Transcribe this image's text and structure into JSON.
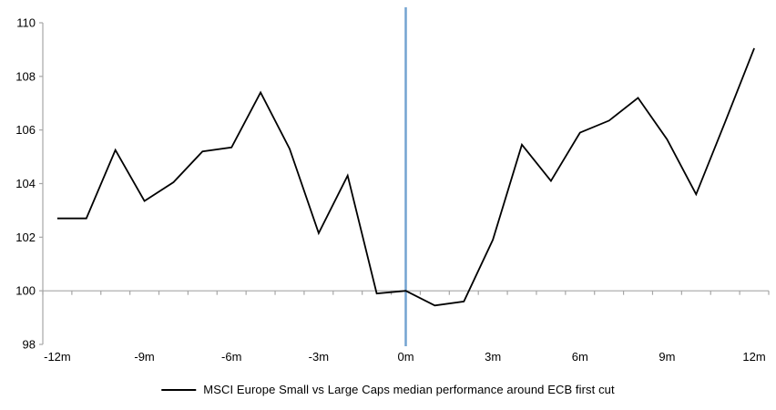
{
  "chart_data": {
    "type": "line",
    "title": "",
    "xlabel": "",
    "ylabel": "",
    "x_months": [
      -12,
      -11,
      -10,
      -9,
      -8,
      -7,
      -6,
      -5,
      -4,
      -3,
      -2,
      -1,
      0,
      1,
      2,
      3,
      4,
      5,
      6,
      7,
      8,
      9,
      10,
      11,
      12
    ],
    "series": [
      {
        "name": "MSCI Europe Small vs Large Caps median performance around ECB first cut",
        "color": "#000000",
        "values": [
          102.7,
          102.7,
          105.25,
          103.35,
          104.05,
          105.2,
          105.35,
          107.4,
          105.3,
          102.15,
          104.3,
          99.9,
          100.0,
          99.45,
          99.6,
          101.9,
          105.45,
          104.1,
          105.9,
          106.35,
          107.2,
          105.65,
          103.6,
          106.3,
          109.05
        ]
      }
    ],
    "ylim": [
      98,
      110
    ],
    "ytick_labels": [
      "98",
      "100",
      "102",
      "104",
      "106",
      "108",
      "110"
    ],
    "xtick_labels": [
      "-12m",
      "-9m",
      "-6m",
      "-3m",
      "0m",
      "3m",
      "6m",
      "9m",
      "12m"
    ],
    "xtick_label_months": [
      -12,
      -9,
      -6,
      -3,
      0,
      3,
      6,
      9,
      12
    ],
    "x_minor_ticks_every_month": true,
    "grid": "off",
    "axis_cross_value": 100,
    "event_line_month": 0,
    "legend_position": "bottom-center",
    "colors": {
      "axis": "#A6A6A6",
      "event_line": "#74A3D1",
      "tick_text": "#000000"
    }
  },
  "legend": {
    "label": "MSCI Europe Small vs Large Caps median performance around ECB first cut"
  }
}
